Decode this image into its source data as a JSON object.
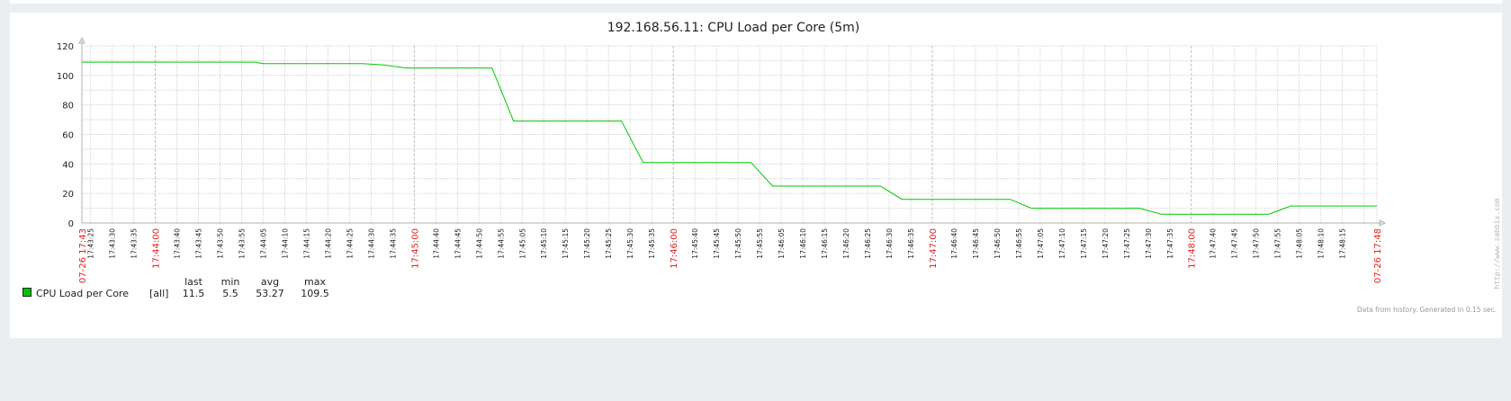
{
  "chart_data": {
    "type": "line",
    "title": "192.168.56.11: CPU Load per Core (5m)",
    "y_ticks": [
      "0",
      "20",
      "40",
      "60",
      "80",
      "100",
      "120"
    ],
    "ylim": [
      0,
      120
    ],
    "x_range_seconds": [
      0,
      300
    ],
    "grid": true,
    "start_label": "07-26 17:43",
    "end_label": "07-26 17:48",
    "minute_labels": [
      "17:44:00",
      "17:45:00",
      "17:46:00",
      "17:47:00",
      "17:48:00"
    ],
    "tick_labels": [
      "17:43:25",
      "17:43:30",
      "17:43:35",
      "17:43:40",
      "17:43:45",
      "17:43:50",
      "17:43:55",
      "17:44:05",
      "17:44:10",
      "17:44:15",
      "17:44:20",
      "17:44:25",
      "17:44:30",
      "17:44:35",
      "17:44:40",
      "17:44:45",
      "17:44:50",
      "17:44:55",
      "17:45:05",
      "17:45:10",
      "17:45:15",
      "17:45:20",
      "17:45:25",
      "17:45:30",
      "17:45:35",
      "17:45:40",
      "17:45:45",
      "17:45:50",
      "17:45:55",
      "17:46:05",
      "17:46:10",
      "17:46:15",
      "17:46:20",
      "17:46:25",
      "17:46:30",
      "17:46:35",
      "17:46:40",
      "17:46:45",
      "17:46:50",
      "17:46:55",
      "17:47:05",
      "17:47:10",
      "17:47:15",
      "17:47:20",
      "17:47:25",
      "17:47:30",
      "17:47:35",
      "17:47:40",
      "17:47:45",
      "17:47:50",
      "17:47:55",
      "17:48:05",
      "17:48:10",
      "17:48:15"
    ],
    "series": [
      {
        "name": "CPU Load per Core",
        "color": "#00c800",
        "x": [
          0,
          40,
          42,
          65,
          70,
          75,
          95,
          100,
          105,
          125,
          130,
          135,
          155,
          160,
          165,
          185,
          190,
          195,
          215,
          220,
          225,
          245,
          250,
          255,
          275,
          280,
          285,
          300
        ],
        "y": [
          109,
          109,
          108,
          108,
          107,
          105,
          105,
          69,
          69,
          69,
          41,
          41,
          41,
          25,
          25,
          25,
          16,
          16,
          16,
          10,
          10,
          10,
          6,
          6,
          6,
          11.5,
          11.5,
          11.5
        ]
      }
    ],
    "legend": {
      "headers": [
        "last",
        "min",
        "avg",
        "max"
      ],
      "rows": [
        {
          "name": "CPU Load per Core",
          "func": "[all]",
          "values": [
            "11.5",
            "5.5",
            "53.27",
            "109.5"
          ],
          "color": "#00c800"
        }
      ]
    },
    "footer": "Data from history. Generated in 0.15 sec.",
    "watermark": "http://www.zabbix.com"
  }
}
